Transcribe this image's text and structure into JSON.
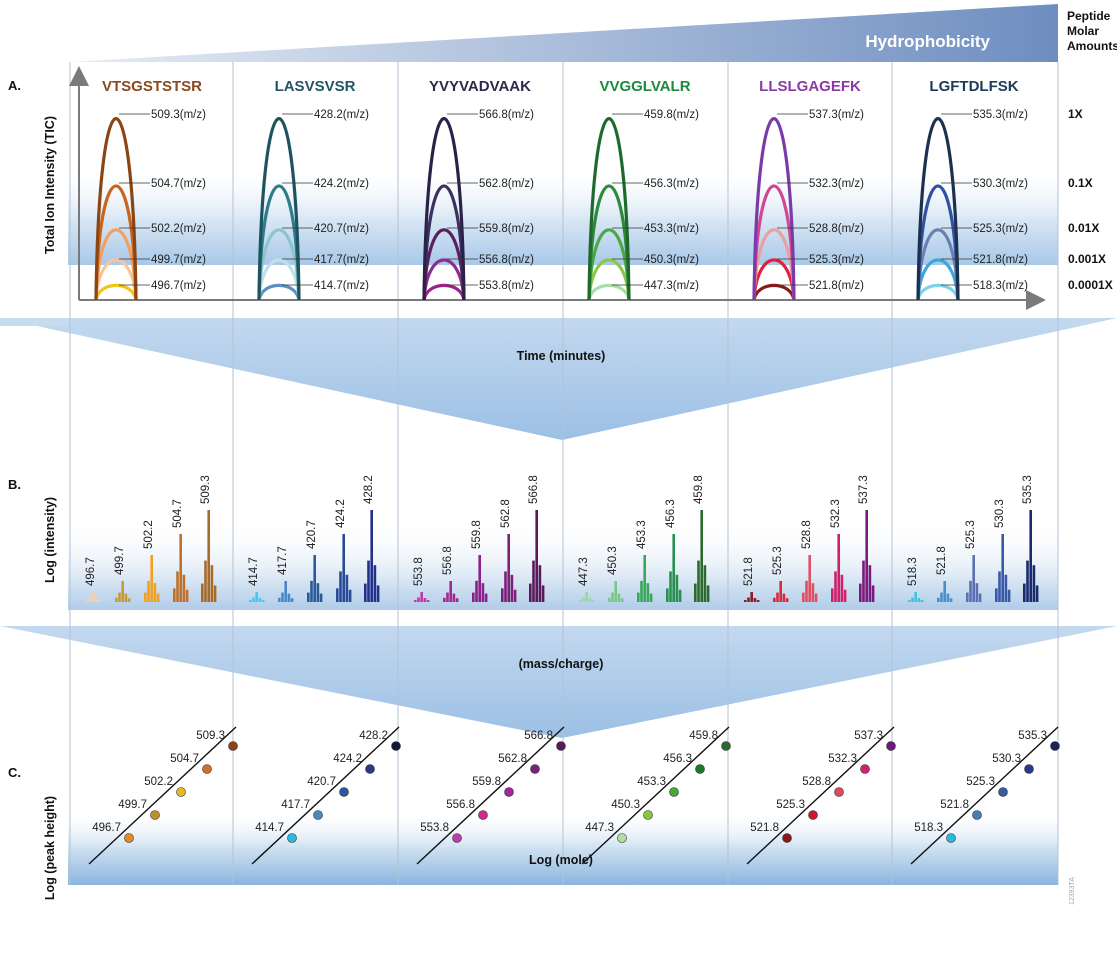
{
  "header": {
    "hydrophobicity": "Hydrophobicity",
    "molar_title": [
      "Peptide",
      "Molar",
      "Amounts"
    ],
    "molar_levels": [
      "1X",
      "0.1X",
      "0.01X",
      "0.001X",
      "0.0001X"
    ]
  },
  "sections": {
    "a": "A.",
    "b": "B.",
    "c": "C."
  },
  "axes": {
    "a_y": "Total Ion Intensity (TIC)",
    "a_x": "Time (minutes)",
    "b_y": "Log (intensity)",
    "b_x": "(mass/charge)",
    "c_y": "Log (peak height)",
    "c_x": "Log (mole)"
  },
  "figure_code": "12393TA",
  "chart_data": [
    {
      "type": "line",
      "panel": "A",
      "x_label": "Time (minutes)",
      "y_label": "Total Ion Intensity (TIC)",
      "peptides": [
        {
          "name": "VTSGSTSTSR",
          "title_color": "#8a4a1c",
          "colors": [
            "#8b4513",
            "#c8641e",
            "#f0a060",
            "#f8c49a",
            "#f2c418"
          ],
          "values": [
            "509.3",
            "504.7",
            "502.2",
            "499.7",
            "496.7"
          ],
          "heights": [
            1,
            0.1,
            0.01,
            0.001,
            0.0001
          ],
          "label_suffix": "(m/z)"
        },
        {
          "name": "LASVSVSR",
          "title_color": "#245563",
          "colors": [
            "#1d5460",
            "#2e7c8a",
            "#8fc4cf",
            "#c0e0e8",
            "#5a8fc8"
          ],
          "values": [
            "428.2",
            "424.2",
            "420.7",
            "417.7",
            "414.7"
          ],
          "heights": [
            1,
            0.1,
            0.01,
            0.001,
            0.0001
          ],
          "label_suffix": "(m/z)"
        },
        {
          "name": "YVYVADVAAK",
          "title_color": "#2e2a4a",
          "colors": [
            "#2a2248",
            "#3c3060",
            "#5a2060",
            "#8a3090",
            "#a0208a"
          ],
          "values": [
            "566.8",
            "562.8",
            "559.8",
            "556.8",
            "553.8"
          ],
          "heights": [
            1,
            0.1,
            0.01,
            0.001,
            0.0001
          ],
          "label_suffix": "(m/z)"
        },
        {
          "name": "VVGGLVALR",
          "title_color": "#1e8a3c",
          "colors": [
            "#1e6a2c",
            "#2c8a3a",
            "#4aa84a",
            "#8ac84a",
            "#a8dca8"
          ],
          "values": [
            "459.8",
            "456.3",
            "453.3",
            "450.3",
            "447.3"
          ],
          "heights": [
            1,
            0.1,
            0.01,
            0.001,
            0.0001
          ],
          "label_suffix": "(m/z)"
        },
        {
          "name": "LLSLGAGEFK",
          "title_color": "#8a3aa8",
          "colors": [
            "#7a3aa8",
            "#d04890",
            "#e8a0a0",
            "#e02040",
            "#8a1a1a"
          ],
          "values": [
            "537.3",
            "532.3",
            "528.8",
            "525.3",
            "521.8"
          ],
          "heights": [
            1,
            0.1,
            0.01,
            0.001,
            0.0001
          ],
          "label_suffix": "(m/z)"
        },
        {
          "name": "LGFTDLFSK",
          "title_color": "#1c3a5a",
          "colors": [
            "#1c3050",
            "#3050a0",
            "#6a80b0",
            "#3aa8d8",
            "#80d0e8"
          ],
          "values": [
            "535.3",
            "530.3",
            "525.3",
            "521.8",
            "518.3"
          ],
          "heights": [
            1,
            0.1,
            0.01,
            0.001,
            0.0001
          ],
          "label_suffix": "(m/z)"
        }
      ]
    },
    {
      "type": "bar",
      "panel": "B",
      "x_label": "(mass/charge)",
      "y_label": "Log (intensity)",
      "groups": [
        {
          "peptide": "VTSGSTSTSR",
          "labels": [
            "496.7",
            "499.7",
            "502.2",
            "504.7",
            "509.3"
          ],
          "colors": [
            "#f5cfae",
            "#c89a30",
            "#f2a020",
            "#c0702a",
            "#a86a2a"
          ],
          "log_intensity": [
            1,
            2,
            3,
            4,
            5
          ]
        },
        {
          "peptide": "LASVSVSR",
          "labels": [
            "414.7",
            "417.7",
            "420.7",
            "424.2",
            "428.2"
          ],
          "colors": [
            "#4ac8e8",
            "#4a88c8",
            "#2a5a98",
            "#2a4a98",
            "#23308a"
          ],
          "log_intensity": [
            1,
            2,
            3,
            4,
            5
          ]
        },
        {
          "peptide": "YVYVADVAAK",
          "labels": [
            "553.8",
            "556.8",
            "559.8",
            "562.8",
            "566.8"
          ],
          "colors": [
            "#c03aa8",
            "#a02890",
            "#8a2088",
            "#7a2078",
            "#5a1a5a"
          ],
          "log_intensity": [
            1,
            2,
            3,
            4,
            5
          ]
        },
        {
          "peptide": "VVGGLVALR",
          "labels": [
            "447.3",
            "450.3",
            "453.3",
            "456.3",
            "459.8"
          ],
          "colors": [
            "#9ad8a8",
            "#7ac888",
            "#38a858",
            "#2a9050",
            "#2a6a2c"
          ],
          "log_intensity": [
            1,
            2,
            3,
            4,
            5
          ]
        },
        {
          "peptide": "LLSLGAGEFK",
          "labels": [
            "521.8",
            "525.3",
            "528.8",
            "532.3",
            "537.3"
          ],
          "colors": [
            "#8a1a2a",
            "#d82a3a",
            "#e05060",
            "#d0206a",
            "#7a1a7a"
          ],
          "log_intensity": [
            1,
            2,
            3,
            4,
            5
          ]
        },
        {
          "peptide": "LGFTDLFSK",
          "labels": [
            "518.3",
            "521.8",
            "525.3",
            "530.3",
            "535.3"
          ],
          "colors": [
            "#48c0e0",
            "#4a90c8",
            "#5a70b0",
            "#3a58a8",
            "#1a2a6a"
          ],
          "log_intensity": [
            1,
            2,
            3,
            4,
            5
          ]
        }
      ]
    },
    {
      "type": "scatter",
      "panel": "C",
      "x_label": "Log (mole)",
      "y_label": "Log (peak height)",
      "groups": [
        {
          "peptide": "VTSGSTSTSR",
          "labels": [
            "496.7",
            "499.7",
            "502.2",
            "504.7",
            "509.3"
          ],
          "colors": [
            "#e8862a",
            "#c0902a",
            "#e8b820",
            "#d0702a",
            "#8a4418"
          ],
          "log_mole": [
            1,
            2,
            3,
            4,
            5
          ],
          "log_peak": [
            1,
            2,
            3,
            4,
            5
          ]
        },
        {
          "peptide": "LASVSVSR",
          "labels": [
            "414.7",
            "417.7",
            "420.7",
            "424.2",
            "428.2"
          ],
          "colors": [
            "#2ab8e0",
            "#4a88c0",
            "#2a58a0",
            "#283a88",
            "#101838"
          ],
          "log_mole": [
            1,
            2,
            3,
            4,
            5
          ],
          "log_peak": [
            1,
            2,
            3,
            4,
            5
          ]
        },
        {
          "peptide": "YVYVADVAAK",
          "labels": [
            "553.8",
            "556.8",
            "559.8",
            "562.8",
            "566.8"
          ],
          "colors": [
            "#c03aa8",
            "#d02a8a",
            "#a02898",
            "#7a2080",
            "#5a1a5a"
          ],
          "log_mole": [
            1,
            2,
            3,
            4,
            5
          ],
          "log_peak": [
            1,
            2,
            3,
            4,
            5
          ]
        },
        {
          "peptide": "VVGGLVALR",
          "labels": [
            "447.3",
            "450.3",
            "453.3",
            "456.3",
            "459.8"
          ],
          "colors": [
            "#b0e0a0",
            "#8ac838",
            "#4aa83a",
            "#1a7a2a",
            "#2a6a2c"
          ],
          "log_mole": [
            1,
            2,
            3,
            4,
            5
          ],
          "log_peak": [
            1,
            2,
            3,
            4,
            5
          ]
        },
        {
          "peptide": "LLSLGAGEFK",
          "labels": [
            "521.8",
            "525.3",
            "528.8",
            "532.3",
            "537.3"
          ],
          "colors": [
            "#8a1a1a",
            "#c81a2a",
            "#e04a5a",
            "#d0207a",
            "#6a1a7a"
          ],
          "log_mole": [
            1,
            2,
            3,
            4,
            5
          ],
          "log_peak": [
            1,
            2,
            3,
            4,
            5
          ]
        },
        {
          "peptide": "LGFTDLFSK",
          "labels": [
            "518.3",
            "521.8",
            "525.3",
            "530.3",
            "535.3"
          ],
          "colors": [
            "#2ab8e0",
            "#4a7ab8",
            "#3a5aa0",
            "#2a3a88",
            "#1a2060"
          ],
          "log_mole": [
            1,
            2,
            3,
            4,
            5
          ],
          "log_peak": [
            1,
            2,
            3,
            4,
            5
          ]
        }
      ]
    }
  ]
}
